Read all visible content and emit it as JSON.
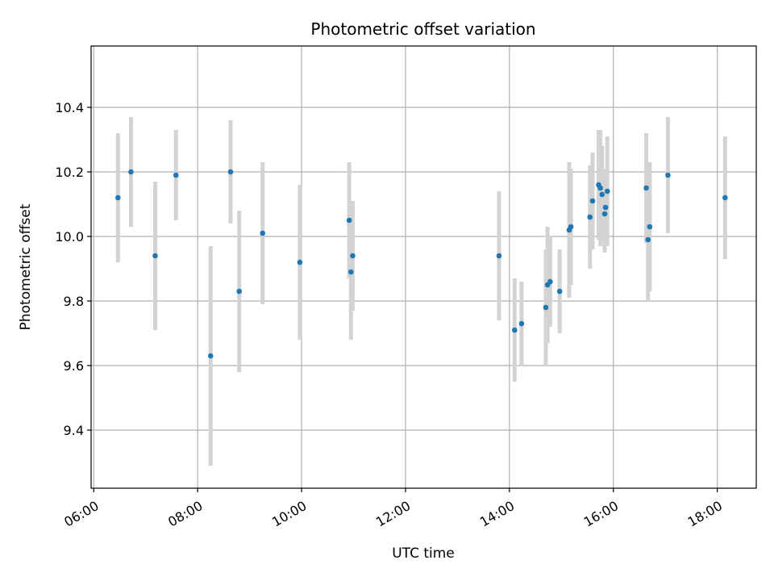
{
  "chart_data": {
    "type": "scatter",
    "title": "Photometric offset variation",
    "xlabel": "UTC time",
    "ylabel": "Photometric offset",
    "xlim": [
      "05:57",
      "18:45"
    ],
    "ylim": [
      9.22,
      10.59
    ],
    "x_ticks": [
      "06:00",
      "08:00",
      "10:00",
      "12:00",
      "14:00",
      "16:00",
      "18:00"
    ],
    "y_ticks": [
      9.4,
      9.6,
      9.8,
      10.0,
      10.2,
      10.4
    ],
    "grid": true,
    "colors": {
      "point": "#1f77b4",
      "errorbar": "#d3d3d3",
      "grid": "#b0b0b0"
    },
    "points": [
      {
        "x": "06:28",
        "y": 10.12,
        "err": 0.2
      },
      {
        "x": "06:43",
        "y": 10.2,
        "err": 0.17
      },
      {
        "x": "07:11",
        "y": 9.94,
        "err": 0.23
      },
      {
        "x": "07:35",
        "y": 10.19,
        "err": 0.14
      },
      {
        "x": "08:15",
        "y": 9.63,
        "err": 0.34
      },
      {
        "x": "08:38",
        "y": 10.2,
        "err": 0.16
      },
      {
        "x": "08:48",
        "y": 9.83,
        "err": 0.25
      },
      {
        "x": "09:15",
        "y": 10.01,
        "err": 0.22
      },
      {
        "x": "09:58",
        "y": 9.92,
        "err": 0.24
      },
      {
        "x": "10:55",
        "y": 10.05,
        "err": 0.18
      },
      {
        "x": "10:57",
        "y": 9.89,
        "err": 0.21
      },
      {
        "x": "10:59",
        "y": 9.94,
        "err": 0.17
      },
      {
        "x": "13:48",
        "y": 9.94,
        "err": 0.2
      },
      {
        "x": "14:06",
        "y": 9.71,
        "err": 0.16
      },
      {
        "x": "14:14",
        "y": 9.73,
        "err": 0.13
      },
      {
        "x": "14:42",
        "y": 9.78,
        "err": 0.18
      },
      {
        "x": "14:44",
        "y": 9.85,
        "err": 0.18
      },
      {
        "x": "14:47",
        "y": 9.86,
        "err": 0.14
      },
      {
        "x": "14:58",
        "y": 9.83,
        "err": 0.13
      },
      {
        "x": "15:09",
        "y": 10.02,
        "err": 0.21
      },
      {
        "x": "15:11",
        "y": 10.03,
        "err": 0.18
      },
      {
        "x": "15:33",
        "y": 10.06,
        "err": 0.16
      },
      {
        "x": "15:36",
        "y": 10.11,
        "err": 0.15
      },
      {
        "x": "15:43",
        "y": 10.16,
        "err": 0.17
      },
      {
        "x": "15:45",
        "y": 10.15,
        "err": 0.18
      },
      {
        "x": "15:47",
        "y": 10.13,
        "err": 0.15
      },
      {
        "x": "15:50",
        "y": 10.07,
        "err": 0.12
      },
      {
        "x": "15:51",
        "y": 10.09,
        "err": 0.12
      },
      {
        "x": "15:53",
        "y": 10.14,
        "err": 0.17
      },
      {
        "x": "16:38",
        "y": 10.15,
        "err": 0.17
      },
      {
        "x": "16:40",
        "y": 9.99,
        "err": 0.19
      },
      {
        "x": "16:42",
        "y": 10.03,
        "err": 0.2
      },
      {
        "x": "17:03",
        "y": 10.19,
        "err": 0.18
      },
      {
        "x": "18:09",
        "y": 10.12,
        "err": 0.19
      }
    ]
  }
}
